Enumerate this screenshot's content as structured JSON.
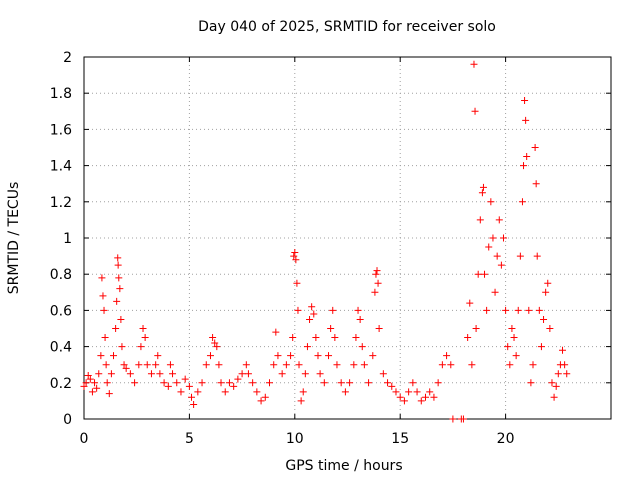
{
  "chart_data": {
    "type": "scatter",
    "title": "Day 040 of 2025, SRMTID for receiver solo",
    "xlabel": "GPS time / hours",
    "ylabel": "SRMTID / TECUs",
    "xlim": [
      0,
      25
    ],
    "ylim": [
      0,
      2
    ],
    "xticks": [
      0,
      5,
      10,
      15,
      20
    ],
    "yticks": [
      0,
      0.2,
      0.4,
      0.6,
      0.8,
      1,
      1.2,
      1.4,
      1.6,
      1.8,
      2
    ],
    "xtick_labels": [
      "0",
      "5",
      "10",
      "15",
      "20"
    ],
    "ytick_labels": [
      "0",
      "0.2",
      "0.4",
      "0.6",
      "0.8",
      "1",
      "1.2",
      "1.4",
      "1.6",
      "1.8",
      "2"
    ],
    "grid": true,
    "marker": "+",
    "color": "#ff0000",
    "series": [
      {
        "name": "SRMTID",
        "points": [
          [
            0.0,
            0.18
          ],
          [
            0.1,
            0.2
          ],
          [
            0.2,
            0.24
          ],
          [
            0.3,
            0.22
          ],
          [
            0.4,
            0.15
          ],
          [
            0.5,
            0.2
          ],
          [
            0.6,
            0.17
          ],
          [
            0.7,
            0.25
          ],
          [
            0.8,
            0.35
          ],
          [
            0.85,
            0.78
          ],
          [
            0.9,
            0.68
          ],
          [
            0.95,
            0.6
          ],
          [
            1.0,
            0.45
          ],
          [
            1.05,
            0.3
          ],
          [
            1.1,
            0.2
          ],
          [
            1.2,
            0.14
          ],
          [
            1.3,
            0.25
          ],
          [
            1.4,
            0.35
          ],
          [
            1.5,
            0.5
          ],
          [
            1.55,
            0.65
          ],
          [
            1.6,
            0.89
          ],
          [
            1.62,
            0.85
          ],
          [
            1.65,
            0.78
          ],
          [
            1.7,
            0.72
          ],
          [
            1.75,
            0.55
          ],
          [
            1.8,
            0.4
          ],
          [
            1.9,
            0.3
          ],
          [
            2.0,
            0.28
          ],
          [
            2.2,
            0.25
          ],
          [
            2.4,
            0.2
          ],
          [
            2.6,
            0.3
          ],
          [
            2.7,
            0.4
          ],
          [
            2.8,
            0.5
          ],
          [
            2.9,
            0.45
          ],
          [
            3.0,
            0.3
          ],
          [
            3.2,
            0.25
          ],
          [
            3.4,
            0.3
          ],
          [
            3.5,
            0.35
          ],
          [
            3.6,
            0.25
          ],
          [
            3.8,
            0.2
          ],
          [
            4.0,
            0.18
          ],
          [
            4.1,
            0.3
          ],
          [
            4.2,
            0.25
          ],
          [
            4.4,
            0.2
          ],
          [
            4.6,
            0.15
          ],
          [
            4.8,
            0.22
          ],
          [
            5.0,
            0.18
          ],
          [
            5.1,
            0.12
          ],
          [
            5.2,
            0.08
          ],
          [
            5.4,
            0.15
          ],
          [
            5.6,
            0.2
          ],
          [
            5.8,
            0.3
          ],
          [
            6.0,
            0.35
          ],
          [
            6.1,
            0.45
          ],
          [
            6.2,
            0.42
          ],
          [
            6.3,
            0.4
          ],
          [
            6.4,
            0.3
          ],
          [
            6.5,
            0.2
          ],
          [
            6.7,
            0.15
          ],
          [
            6.9,
            0.2
          ],
          [
            7.1,
            0.18
          ],
          [
            7.3,
            0.22
          ],
          [
            7.5,
            0.25
          ],
          [
            7.7,
            0.3
          ],
          [
            7.8,
            0.25
          ],
          [
            8.0,
            0.2
          ],
          [
            8.2,
            0.15
          ],
          [
            8.4,
            0.1
          ],
          [
            8.6,
            0.12
          ],
          [
            8.8,
            0.2
          ],
          [
            9.0,
            0.3
          ],
          [
            9.1,
            0.48
          ],
          [
            9.2,
            0.35
          ],
          [
            9.4,
            0.25
          ],
          [
            9.6,
            0.3
          ],
          [
            9.8,
            0.35
          ],
          [
            9.9,
            0.45
          ],
          [
            9.95,
            0.9
          ],
          [
            10.0,
            0.92
          ],
          [
            10.05,
            0.88
          ],
          [
            10.1,
            0.75
          ],
          [
            10.15,
            0.6
          ],
          [
            10.2,
            0.3
          ],
          [
            10.3,
            0.1
          ],
          [
            10.4,
            0.15
          ],
          [
            10.5,
            0.25
          ],
          [
            10.6,
            0.4
          ],
          [
            10.7,
            0.55
          ],
          [
            10.8,
            0.62
          ],
          [
            10.9,
            0.58
          ],
          [
            11.0,
            0.45
          ],
          [
            11.1,
            0.35
          ],
          [
            11.2,
            0.25
          ],
          [
            11.4,
            0.2
          ],
          [
            11.6,
            0.35
          ],
          [
            11.7,
            0.5
          ],
          [
            11.8,
            0.6
          ],
          [
            11.9,
            0.45
          ],
          [
            12.0,
            0.3
          ],
          [
            12.2,
            0.2
          ],
          [
            12.4,
            0.15
          ],
          [
            12.6,
            0.2
          ],
          [
            12.8,
            0.3
          ],
          [
            12.9,
            0.45
          ],
          [
            13.0,
            0.6
          ],
          [
            13.1,
            0.55
          ],
          [
            13.2,
            0.4
          ],
          [
            13.3,
            0.3
          ],
          [
            13.5,
            0.2
          ],
          [
            13.7,
            0.35
          ],
          [
            13.8,
            0.7
          ],
          [
            13.85,
            0.8
          ],
          [
            13.9,
            0.82
          ],
          [
            13.95,
            0.75
          ],
          [
            14.0,
            0.5
          ],
          [
            14.2,
            0.25
          ],
          [
            14.4,
            0.2
          ],
          [
            14.6,
            0.18
          ],
          [
            14.8,
            0.15
          ],
          [
            15.0,
            0.12
          ],
          [
            15.2,
            0.1
          ],
          [
            15.4,
            0.15
          ],
          [
            15.6,
            0.2
          ],
          [
            15.8,
            0.15
          ],
          [
            16.0,
            0.1
          ],
          [
            16.2,
            0.12
          ],
          [
            16.4,
            0.15
          ],
          [
            16.6,
            0.12
          ],
          [
            16.8,
            0.2
          ],
          [
            17.0,
            0.3
          ],
          [
            17.2,
            0.35
          ],
          [
            17.4,
            0.3
          ],
          [
            17.5,
            0.0
          ],
          [
            17.9,
            0.0
          ],
          [
            18.0,
            0.0
          ],
          [
            18.2,
            0.45
          ],
          [
            18.3,
            0.64
          ],
          [
            18.4,
            0.3
          ],
          [
            18.5,
            1.96
          ],
          [
            18.55,
            1.7
          ],
          [
            18.6,
            0.5
          ],
          [
            18.7,
            0.8
          ],
          [
            18.8,
            1.1
          ],
          [
            18.9,
            1.25
          ],
          [
            18.95,
            1.28
          ],
          [
            19.0,
            0.8
          ],
          [
            19.1,
            0.6
          ],
          [
            19.2,
            0.95
          ],
          [
            19.3,
            1.2
          ],
          [
            19.4,
            1.0
          ],
          [
            19.5,
            0.7
          ],
          [
            19.6,
            0.9
          ],
          [
            19.7,
            1.1
          ],
          [
            19.8,
            0.85
          ],
          [
            19.9,
            1.0
          ],
          [
            20.0,
            0.6
          ],
          [
            20.1,
            0.4
          ],
          [
            20.2,
            0.3
          ],
          [
            20.3,
            0.5
          ],
          [
            20.4,
            0.45
          ],
          [
            20.5,
            0.35
          ],
          [
            20.6,
            0.6
          ],
          [
            20.7,
            0.9
          ],
          [
            20.8,
            1.2
          ],
          [
            20.85,
            1.4
          ],
          [
            20.9,
            1.76
          ],
          [
            20.95,
            1.65
          ],
          [
            21.0,
            1.45
          ],
          [
            21.1,
            0.6
          ],
          [
            21.2,
            0.2
          ],
          [
            21.3,
            0.3
          ],
          [
            21.4,
            1.5
          ],
          [
            21.45,
            1.3
          ],
          [
            21.5,
            0.9
          ],
          [
            21.6,
            0.6
          ],
          [
            21.7,
            0.4
          ],
          [
            21.8,
            0.55
          ],
          [
            21.9,
            0.7
          ],
          [
            22.0,
            0.75
          ],
          [
            22.1,
            0.5
          ],
          [
            22.2,
            0.2
          ],
          [
            22.3,
            0.12
          ],
          [
            22.4,
            0.18
          ],
          [
            22.5,
            0.25
          ],
          [
            22.6,
            0.3
          ],
          [
            22.7,
            0.38
          ],
          [
            22.8,
            0.3
          ],
          [
            22.9,
            0.25
          ]
        ]
      }
    ]
  }
}
